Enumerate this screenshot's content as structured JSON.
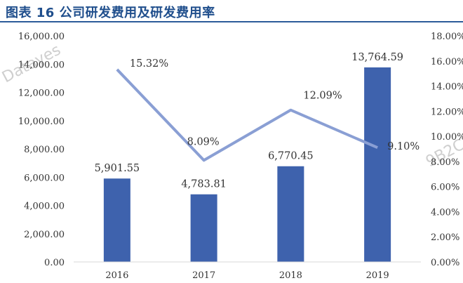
{
  "title": "图表 16 公司研发费用及研发费用率",
  "colors": {
    "bar": "#3e62ad",
    "line": "#8a9fd4",
    "title": "#1f4e8c",
    "rule": "#2c5c9a"
  },
  "chart_data": {
    "type": "bar",
    "categories": [
      "2016",
      "2017",
      "2018",
      "2019"
    ],
    "series": [
      {
        "type": "bar",
        "axis": "left",
        "values": [
          5901.55,
          4783.81,
          6770.45,
          13764.59
        ],
        "labels": [
          "5,901.55",
          "4,783.81",
          "6,770.45",
          "13,764.59"
        ]
      },
      {
        "type": "line",
        "axis": "right",
        "values": [
          15.32,
          8.09,
          12.09,
          9.1
        ],
        "labels": [
          "15.32%",
          "8.09%",
          "12.09%",
          "9.10%"
        ]
      }
    ],
    "left_axis": {
      "range": [
        0,
        16000
      ],
      "ticks": [
        0,
        2000,
        4000,
        6000,
        8000,
        10000,
        12000,
        14000,
        16000
      ],
      "tick_labels": [
        "0.00",
        "2,000.00",
        "4,000.00",
        "6,000.00",
        "8,000.00",
        "10,000.00",
        "12,000.00",
        "14,000.00",
        "16,000.00"
      ]
    },
    "right_axis": {
      "range": [
        0,
        18
      ],
      "ticks": [
        0,
        2,
        4,
        6,
        8,
        10,
        12,
        14,
        16,
        18
      ],
      "tick_labels": [
        "0.00%",
        "2.00%",
        "4.00%",
        "6.00%",
        "8.00%",
        "10.00%",
        "12.00%",
        "14.00%",
        "16.00%",
        "18.00%"
      ]
    },
    "grid": false,
    "legend": "none"
  },
  "watermarks": [
    "Datayes",
    "9B2C"
  ]
}
